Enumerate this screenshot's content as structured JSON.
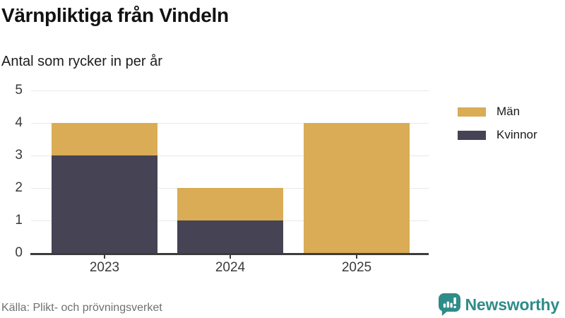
{
  "header": {
    "title": "Värnpliktiga från Vindeln",
    "subtitle": "Antal som rycker in per år"
  },
  "chart_data": {
    "type": "bar",
    "stacked": true,
    "title": "Värnpliktiga från Vindeln",
    "subtitle": "Antal som rycker in per år",
    "categories": [
      "2023",
      "2024",
      "2025"
    ],
    "series": [
      {
        "name": "Män",
        "color": "#D9AC55",
        "values": [
          1,
          1,
          4
        ]
      },
      {
        "name": "Kvinnor",
        "color": "#454354",
        "values": [
          3,
          1,
          0
        ]
      }
    ],
    "ylim": [
      0,
      5
    ],
    "yticks": [
      0,
      1,
      2,
      3,
      4,
      5
    ],
    "xlabel": "",
    "ylabel": "",
    "grid": true,
    "legend_position": "top-right"
  },
  "legend": {
    "items": [
      {
        "label": "Män",
        "color": "#D9AC55"
      },
      {
        "label": "Kvinnor",
        "color": "#454354"
      }
    ]
  },
  "footer": {
    "source": "Källa: Plikt- och prövningsverket",
    "brand": "Newsworthy",
    "brand_color": "#2E8C8A"
  },
  "colors": {
    "grid": "#E8E8E8",
    "axis": "#3C3C3C"
  }
}
